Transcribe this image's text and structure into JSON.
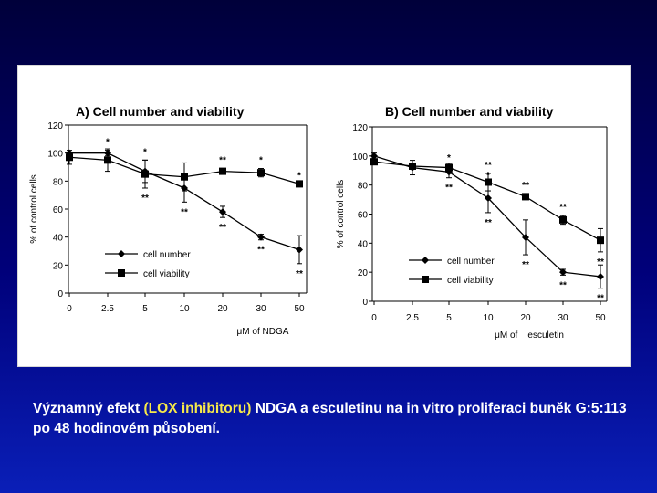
{
  "caption": {
    "part1": "Významný efekt",
    "part2": "(LOX inhibitoru)",
    "part3": "NDGA a esculetinu na",
    "part4": "in vitro",
    "part5": "proliferaci buněk G:5:113 po 48 hodinovém působení."
  },
  "colors": {
    "caption_text": "#ffffff",
    "caption_highlight": "#f6e84a",
    "line": "#000000"
  },
  "chart_data": [
    {
      "type": "line",
      "title": "A) Cell number and viability",
      "xlabel": "μM of NDGA",
      "ylabel": "% of control cells",
      "categories": [
        "0",
        "2.5",
        "5",
        "10",
        "20",
        "30",
        "50"
      ],
      "ylim": [
        0,
        120
      ],
      "yticks": [
        "0",
        "20",
        "40",
        "60",
        "80",
        "100",
        "120"
      ],
      "legend": [
        "cell number",
        "cell viability"
      ],
      "series": [
        {
          "name": "cell number",
          "marker": "diamond",
          "values": [
            100,
            100,
            87,
            75,
            58,
            40,
            31
          ],
          "errors": [
            0,
            2,
            8,
            10,
            4,
            2,
            10
          ],
          "sig_above": [
            "",
            "*",
            "*",
            "",
            "",
            "",
            ""
          ],
          "sig_below": [
            "",
            "",
            "",
            "**",
            "**",
            "**",
            "**"
          ]
        },
        {
          "name": "cell viability",
          "marker": "square",
          "values": [
            97,
            95,
            85,
            83,
            87,
            86,
            78
          ],
          "errors": [
            5,
            8,
            10,
            10,
            2,
            3,
            0
          ],
          "sig_above": [
            "",
            "",
            "",
            "",
            "**",
            "*",
            "*"
          ],
          "sig_below": [
            "",
            "",
            "**",
            "",
            "",
            "",
            ""
          ]
        }
      ]
    },
    {
      "type": "line",
      "title": "B) Cell number and viability",
      "xlabel": "μM of    esculetin",
      "ylabel": "% of control cells",
      "categories": [
        "0",
        "2.5",
        "5",
        "10",
        "20",
        "30",
        "50"
      ],
      "ylim": [
        0,
        120
      ],
      "yticks": [
        "0",
        "20",
        "40",
        "60",
        "80",
        "100",
        "120"
      ],
      "legend": [
        "cell number",
        "cell viability"
      ],
      "series": [
        {
          "name": "cell number",
          "marker": "diamond",
          "values": [
            100,
            92,
            89,
            71,
            44,
            20,
            17
          ],
          "errors": [
            2,
            5,
            4,
            10,
            12,
            2,
            8
          ],
          "sig_above": [
            "",
            "",
            "*",
            "*",
            "",
            "",
            ""
          ],
          "sig_below": [
            "",
            "",
            "**",
            "**",
            "**",
            "**",
            "**"
          ]
        },
        {
          "name": "cell viability",
          "marker": "square",
          "values": [
            96,
            93,
            92,
            82,
            72,
            56,
            42
          ],
          "errors": [
            2,
            2,
            3,
            6,
            2,
            3,
            8
          ],
          "sig_above": [
            "",
            "",
            "",
            "**",
            "**",
            "**",
            ""
          ],
          "sig_below": [
            "",
            "",
            "",
            "",
            "",
            "",
            "**"
          ]
        }
      ]
    }
  ]
}
